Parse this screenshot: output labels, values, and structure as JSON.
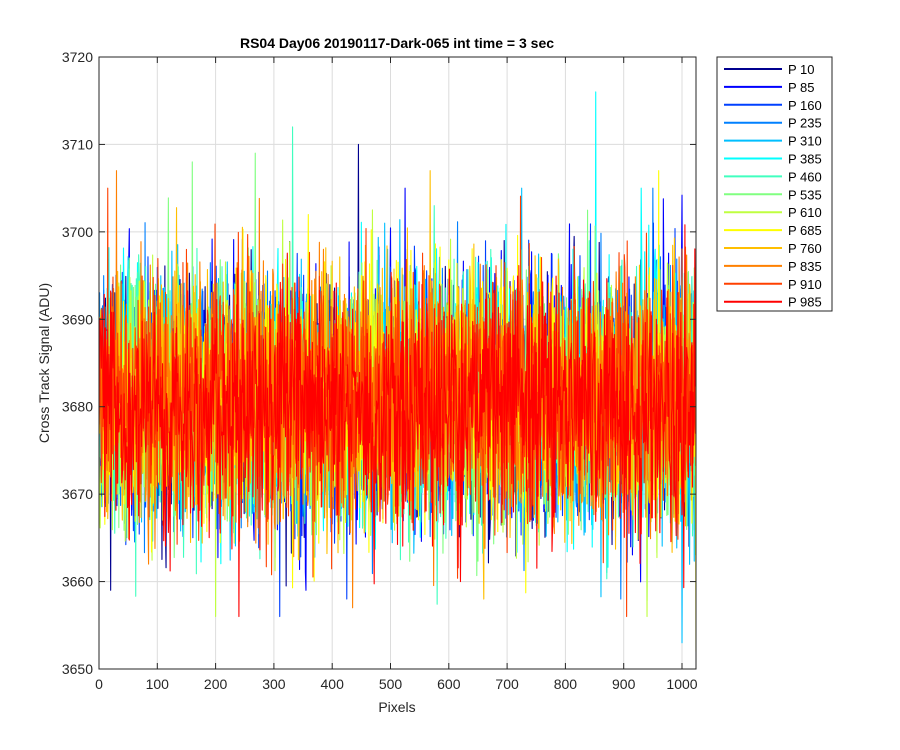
{
  "chart_data": {
    "type": "line",
    "title": "RS04 Day06 20190117-Dark-065 int time = 3 sec",
    "xlabel": "Pixels",
    "ylabel": "Cross Track Signal (ADU)",
    "xlim": [
      0,
      1024
    ],
    "ylim": [
      3650,
      3720
    ],
    "xticks": [
      0,
      100,
      200,
      300,
      400,
      500,
      600,
      700,
      800,
      900,
      1000
    ],
    "yticks": [
      3650,
      3660,
      3670,
      3680,
      3690,
      3700,
      3710,
      3720
    ],
    "grid": true,
    "legend_position": "outside-right",
    "series": [
      {
        "name": "P 10",
        "color": "#00008F",
        "mean": 3681,
        "sd": 7,
        "peaks": [
          [
            445,
            3710
          ],
          [
            20,
            3659
          ]
        ]
      },
      {
        "name": "P 85",
        "color": "#0000FF",
        "mean": 3681,
        "sd": 7,
        "peaks": [
          [
            525,
            3705
          ],
          [
            355,
            3659
          ]
        ]
      },
      {
        "name": "P 160",
        "color": "#0040FF",
        "mean": 3681,
        "sd": 7,
        "peaks": [
          [
            310,
            3656
          ],
          [
            425,
            3658
          ]
        ]
      },
      {
        "name": "P 235",
        "color": "#0080FF",
        "mean": 3681,
        "sd": 7,
        "peaks": [
          [
            950,
            3705
          ],
          [
            895,
            3658
          ]
        ]
      },
      {
        "name": "P 310",
        "color": "#00BFFF",
        "mean": 3681,
        "sd": 7,
        "peaks": [
          [
            1000,
            3653
          ],
          [
            725,
            3705
          ]
        ]
      },
      {
        "name": "P 385",
        "color": "#00FFFF",
        "mean": 3681,
        "sd": 7,
        "peaks": [
          [
            852,
            3716
          ],
          [
            930,
            3705
          ]
        ]
      },
      {
        "name": "P 460",
        "color": "#40FFBF",
        "mean": 3681,
        "sd": 7,
        "peaks": [
          [
            332,
            3712
          ],
          [
            575,
            3703
          ]
        ]
      },
      {
        "name": "P 535",
        "color": "#80FF80",
        "mean": 3681,
        "sd": 7,
        "peaks": [
          [
            268,
            3709
          ],
          [
            160,
            3708
          ]
        ]
      },
      {
        "name": "P 610",
        "color": "#BFFF40",
        "mean": 3681,
        "sd": 7,
        "peaks": [
          [
            200,
            3656
          ],
          [
            940,
            3656
          ]
        ]
      },
      {
        "name": "P 685",
        "color": "#FFFF00",
        "mean": 3681,
        "sd": 7,
        "peaks": [
          [
            1024,
            3652
          ],
          [
            960,
            3707
          ]
        ]
      },
      {
        "name": "P 760",
        "color": "#FFBF00",
        "mean": 3681,
        "sd": 7,
        "peaks": [
          [
            568,
            3707
          ],
          [
            660,
            3658
          ]
        ]
      },
      {
        "name": "P 835",
        "color": "#FF8000",
        "mean": 3681,
        "sd": 7,
        "peaks": [
          [
            30,
            3707
          ],
          [
            435,
            3657
          ]
        ]
      },
      {
        "name": "P 910",
        "color": "#FF4000",
        "mean": 3681,
        "sd": 7,
        "peaks": [
          [
            15,
            3705
          ],
          [
            905,
            3656
          ]
        ]
      },
      {
        "name": "P 985",
        "color": "#FF0000",
        "mean": 3680,
        "sd": 7,
        "peaks": [
          [
            240,
            3656
          ],
          [
            620,
            3660
          ]
        ]
      }
    ]
  }
}
